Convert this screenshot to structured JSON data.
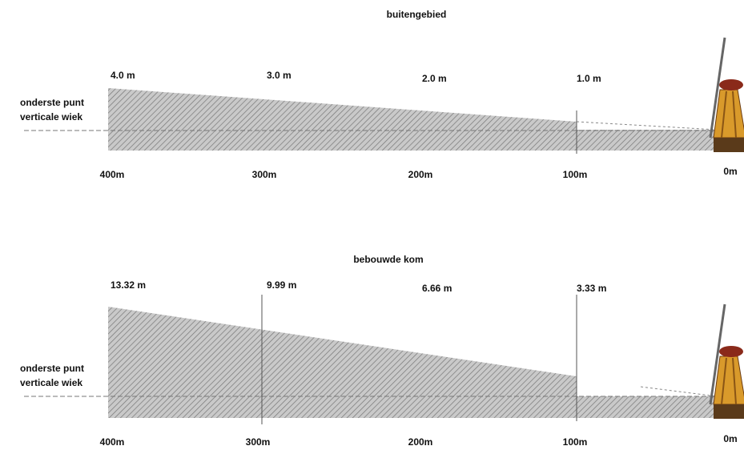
{
  "panels": [
    {
      "title": "buitengebied",
      "side_label": [
        "onderste punt",
        "verticale wiek"
      ],
      "heights": [
        "4.0 m",
        "3.0 m",
        "2.0 m",
        "1.0 m"
      ],
      "distances": [
        "400m",
        "300m",
        "200m",
        "100m",
        "0m"
      ]
    },
    {
      "title": "bebouwde kom",
      "side_label": [
        "onderste punt",
        "verticale wiek"
      ],
      "heights": [
        "13.32 m",
        "9.99 m",
        "6.66 m",
        "3.33 m"
      ],
      "distances": [
        "400m",
        "300m",
        "200m",
        "100m",
        "0m"
      ]
    }
  ]
}
